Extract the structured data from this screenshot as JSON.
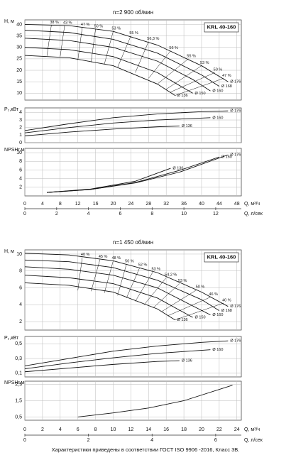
{
  "chart_data": [
    {
      "type": "line",
      "title": "n=2 900 об/мин",
      "model": "KRL 40-160",
      "y_label": "H, м",
      "xlim": [
        0,
        49
      ],
      "xticks": [
        0,
        4,
        8,
        12,
        16,
        20,
        24,
        28,
        32,
        36,
        40,
        44,
        48
      ],
      "ylim": [
        7,
        42
      ],
      "yticks": [
        10,
        15,
        20,
        25,
        30,
        35,
        40
      ],
      "grid": true,
      "color": "#111111",
      "series": [
        {
          "name": "Ø 176",
          "x": [
            0,
            10,
            20,
            30,
            40,
            46
          ],
          "values": [
            40,
            39.5,
            37,
            31,
            22,
            15
          ]
        },
        {
          "name": "Ø 168",
          "x": [
            0,
            10,
            20,
            30,
            40,
            44
          ],
          "values": [
            37.5,
            36.5,
            33.5,
            27.5,
            18,
            13
          ]
        },
        {
          "name": "Ø 160",
          "x": [
            0,
            10,
            20,
            30,
            38,
            42
          ],
          "values": [
            34,
            33,
            30,
            24,
            16,
            11
          ]
        },
        {
          "name": "Ø 150",
          "x": [
            0,
            10,
            20,
            30,
            38
          ],
          "values": [
            30,
            29,
            26,
            19,
            10
          ]
        },
        {
          "name": "Ø 136",
          "x": [
            0,
            10,
            20,
            30,
            34
          ],
          "values": [
            26.5,
            25.5,
            22,
            14,
            9
          ]
        }
      ],
      "efficiency_lines": [
        {
          "label": "38 %",
          "x": [
            6,
            5
          ],
          "values": [
            39.7,
            26.3
          ]
        },
        {
          "label": "43 %",
          "x": [
            9,
            8
          ],
          "values": [
            39.5,
            26
          ]
        },
        {
          "label": "47 %",
          "x": [
            13,
            12
          ],
          "values": [
            38.8,
            24.5
          ]
        },
        {
          "label": "50 %",
          "x": [
            16,
            15
          ],
          "values": [
            38,
            23.5
          ]
        },
        {
          "label": "53 %",
          "x": [
            20,
            18
          ],
          "values": [
            37,
            22.7
          ]
        },
        {
          "label": "55 %",
          "x": [
            24,
            21
          ],
          "values": [
            35,
            21.3
          ]
        },
        {
          "label": "56,3 %",
          "x": [
            28,
            25
          ],
          "values": [
            32.5,
            19
          ]
        },
        {
          "label": "56 %",
          "x": [
            33,
            28
          ],
          "values": [
            28.5,
            16.5
          ]
        },
        {
          "label": "55 %",
          "x": [
            37,
            30
          ],
          "values": [
            25,
            14
          ]
        },
        {
          "label": "53 %",
          "x": [
            40,
            32
          ],
          "values": [
            22,
            11.7
          ]
        },
        {
          "label": "50 %",
          "x": [
            43,
            33
          ],
          "values": [
            19,
            10.5
          ]
        },
        {
          "label": "47 %",
          "x": [
            45,
            34
          ],
          "values": [
            16.5,
            9
          ]
        }
      ]
    },
    {
      "type": "line",
      "y_label": "P₂,кВт",
      "xlim": [
        0,
        49
      ],
      "xticks": [
        0,
        4,
        8,
        12,
        16,
        20,
        24,
        28,
        32,
        36,
        40,
        44,
        48
      ],
      "ylim": [
        0,
        4.6
      ],
      "yticks": [
        0,
        1,
        2,
        3,
        4
      ],
      "grid": true,
      "color": "#111111",
      "series": [
        {
          "name": "Ø 176",
          "x": [
            0,
            10,
            20,
            30,
            40,
            46
          ],
          "values": [
            1.6,
            2.5,
            3.3,
            3.8,
            4.1,
            4.2
          ]
        },
        {
          "name": "Ø 160",
          "x": [
            0,
            10,
            20,
            30,
            42
          ],
          "values": [
            1.3,
            2,
            2.6,
            3,
            3.3
          ]
        },
        {
          "name": "Ø 136",
          "x": [
            0,
            10,
            20,
            30,
            35
          ],
          "values": [
            0.9,
            1.4,
            1.8,
            2.1,
            2.2
          ]
        }
      ]
    },
    {
      "type": "line",
      "y_label": "NPSHr,м",
      "x_label": "Q, м³/ч",
      "x2_label": "Q, л/сек",
      "xlim": [
        0,
        49
      ],
      "xticks": [
        0,
        4,
        8,
        12,
        16,
        20,
        24,
        28,
        32,
        36,
        40,
        44,
        48
      ],
      "x2lim": [
        0,
        13.61
      ],
      "x2ticks": [
        0,
        2,
        4,
        6,
        8,
        10,
        12
      ],
      "ylim": [
        0,
        11
      ],
      "yticks": [
        2,
        4,
        6,
        8,
        10
      ],
      "grid": true,
      "color": "#111111",
      "series": [
        {
          "name": "Ø 176",
          "x": [
            5,
            15,
            25,
            35,
            46
          ],
          "values": [
            0.8,
            1.5,
            3,
            5.5,
            9.5
          ]
        },
        {
          "name": "Ø 160",
          "x": [
            5,
            15,
            25,
            35,
            44
          ],
          "values": [
            0.8,
            1.5,
            3.1,
            5.9,
            9
          ]
        },
        {
          "name": "Ø 136",
          "x": [
            5,
            15,
            25,
            33
          ],
          "values": [
            0.8,
            1.6,
            3.4,
            6.4
          ]
        }
      ]
    },
    {
      "type": "line",
      "title": "n=1 450 об/мин",
      "model": "KRL 40-160",
      "y_label": "H, м",
      "xlim": [
        0,
        24.5
      ],
      "xticks": [
        0,
        2,
        4,
        6,
        8,
        10,
        12,
        14,
        16,
        18,
        20,
        22,
        24
      ],
      "ylim": [
        1,
        10.5
      ],
      "yticks": [
        2,
        4,
        6,
        8,
        10
      ],
      "grid": true,
      "color": "#111111",
      "series": [
        {
          "name": "Ø 176",
          "x": [
            0,
            5,
            10,
            15,
            20,
            23
          ],
          "values": [
            10.1,
            9.9,
            9.2,
            7.8,
            5.5,
            3.8
          ]
        },
        {
          "name": "Ø 168",
          "x": [
            0,
            5,
            10,
            15,
            20,
            22
          ],
          "values": [
            9.3,
            9.1,
            8.4,
            6.9,
            4.6,
            3.3
          ]
        },
        {
          "name": "Ø 160",
          "x": [
            0,
            5,
            10,
            15,
            21
          ],
          "values": [
            8.5,
            8.2,
            7.5,
            6,
            2.8
          ]
        },
        {
          "name": "Ø 150",
          "x": [
            0,
            5,
            10,
            15,
            19
          ],
          "values": [
            7.5,
            7.2,
            6.5,
            4.8,
            2.5
          ]
        },
        {
          "name": "Ø 136",
          "x": [
            0,
            5,
            10,
            15,
            17
          ],
          "values": [
            6.6,
            6.3,
            5.5,
            3.5,
            2.2
          ]
        }
      ],
      "efficiency_lines": [
        {
          "label": "40 %",
          "x": [
            6.5,
            6
          ],
          "values": [
            9.6,
            5.7
          ]
        },
        {
          "label": "45 %",
          "x": [
            8.5,
            7.5
          ],
          "values": [
            9.35,
            5.6
          ]
        },
        {
          "label": "48 %",
          "x": [
            10,
            9
          ],
          "values": [
            9.2,
            5.4
          ]
        },
        {
          "label": "50 %",
          "x": [
            11.5,
            10.5
          ],
          "values": [
            8.8,
            5.1
          ]
        },
        {
          "label": "52 %",
          "x": [
            13,
            11.5
          ],
          "values": [
            8.4,
            4.8
          ]
        },
        {
          "label": "53 %",
          "x": [
            14.5,
            12.5
          ],
          "values": [
            7.9,
            4.4
          ]
        },
        {
          "label": "54,2 %",
          "x": [
            16,
            13.5
          ],
          "values": [
            7.2,
            4
          ]
        },
        {
          "label": "53 %",
          "x": [
            17.5,
            14.5
          ],
          "values": [
            6.5,
            3.6
          ]
        },
        {
          "label": "50 %",
          "x": [
            19.5,
            15.5
          ],
          "values": [
            5.8,
            3.2
          ]
        },
        {
          "label": "46 %",
          "x": [
            21,
            16.2
          ],
          "values": [
            4.9,
            2.7
          ]
        },
        {
          "label": "40 %",
          "x": [
            22.5,
            17
          ],
          "values": [
            4.2,
            2.2
          ]
        }
      ]
    },
    {
      "type": "line",
      "y_label": "P₂,кВт",
      "xlim": [
        0,
        24.5
      ],
      "xticks": [
        0,
        2,
        4,
        6,
        8,
        10,
        12,
        14,
        16,
        18,
        20,
        22,
        24
      ],
      "ylim": [
        0.05,
        0.6
      ],
      "yticks": [
        {
          "value": 0.1,
          "label": "0,1"
        },
        {
          "value": 0.3,
          "label": "0,3"
        },
        {
          "value": 0.5,
          "label": "0,5"
        }
      ],
      "grid": true,
      "color": "#111111",
      "series": [
        {
          "name": "Ø 176",
          "x": [
            0,
            5,
            10,
            15,
            20,
            23
          ],
          "values": [
            0.2,
            0.3,
            0.4,
            0.47,
            0.52,
            0.54
          ]
        },
        {
          "name": "Ø 160",
          "x": [
            0,
            5,
            10,
            15,
            21
          ],
          "values": [
            0.16,
            0.24,
            0.31,
            0.37,
            0.42
          ]
        },
        {
          "name": "Ø 136",
          "x": [
            0,
            5,
            10,
            15,
            17.5
          ],
          "values": [
            0.12,
            0.17,
            0.22,
            0.26,
            0.27
          ]
        }
      ]
    },
    {
      "type": "line",
      "y_label": "NPSHr,м",
      "x_label": "Q, м³/ч",
      "x2_label": "Q, л/сек",
      "xlim": [
        0,
        24.5
      ],
      "xticks": [
        0,
        2,
        4,
        6,
        8,
        10,
        12,
        14,
        16,
        18,
        20,
        22,
        24
      ],
      "x2lim": [
        0,
        6.806
      ],
      "x2ticks": [
        0,
        2,
        4,
        6
      ],
      "ylim": [
        0.3,
        2.7
      ],
      "yticks": [
        {
          "value": 0.5,
          "label": "0,5"
        },
        {
          "value": 1.5,
          "label": "1,5"
        },
        {
          "value": 2.5,
          "label": "2,5"
        }
      ],
      "grid": true,
      "color": "#111111",
      "series": [
        {
          "x": [
            6,
            10,
            14,
            18,
            23.5
          ],
          "values": [
            0.5,
            0.75,
            1.05,
            1.5,
            2.45
          ]
        }
      ]
    }
  ],
  "footer": "Характеристики приведены в соответствии  ГОСТ ISO 9906 -2016, Класс 3B."
}
